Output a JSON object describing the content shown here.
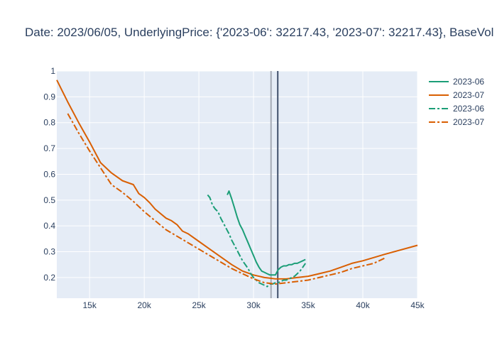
{
  "chart_data": {
    "type": "line",
    "title": "Date:  2023/06/05, UnderlyingPrice: {'2023-06': 32217.43, '2023-07': 32217.43}, BaseVol",
    "xlabel": "",
    "ylabel": "",
    "xlim": [
      12000,
      45000
    ],
    "ylim": [
      0.12,
      1.0
    ],
    "x_ticks": [
      15000,
      20000,
      25000,
      30000,
      35000,
      40000,
      45000
    ],
    "x_tick_labels": [
      "15k",
      "20k",
      "25k",
      "30k",
      "35k",
      "40k",
      "45k"
    ],
    "y_ticks": [
      0.2,
      0.3,
      0.4,
      0.5,
      0.6,
      0.7,
      0.8,
      0.9,
      1.0
    ],
    "y_tick_labels": [
      "0.2",
      "0.3",
      "0.4",
      "0.5",
      "0.6",
      "0.7",
      "0.8",
      "0.9",
      "1"
    ],
    "grid": true,
    "legend_position": "right",
    "background_color": "#e5ecf6",
    "vertical_lines": [
      {
        "x": 31600,
        "color": "#a5aab5"
      },
      {
        "x": 32217.43,
        "color": "#3f4f6b"
      }
    ],
    "series": [
      {
        "name": "2023-06",
        "color": "#1b9e77",
        "dash": "solid",
        "x": [
          27600,
          27750,
          28000,
          28250,
          28500,
          28750,
          29000,
          29250,
          29500,
          29750,
          30000,
          30250,
          30500,
          30750,
          31000,
          31250,
          31500,
          31750,
          32000,
          32250,
          32500,
          32750,
          33000,
          33250,
          33500,
          33750,
          34000,
          34250,
          34500,
          34750
        ],
        "y": [
          0.52,
          0.535,
          0.505,
          0.47,
          0.435,
          0.405,
          0.385,
          0.36,
          0.335,
          0.31,
          0.285,
          0.26,
          0.24,
          0.225,
          0.22,
          0.215,
          0.21,
          0.21,
          0.21,
          0.23,
          0.24,
          0.245,
          0.245,
          0.25,
          0.25,
          0.255,
          0.255,
          0.26,
          0.265,
          0.27
        ]
      },
      {
        "name": "2023-07",
        "color": "#d95f02",
        "dash": "solid",
        "x": [
          12000,
          13000,
          14000,
          15000,
          16000,
          17000,
          18000,
          19000,
          19500,
          20000,
          20500,
          21000,
          22000,
          22500,
          23000,
          23500,
          24000,
          25000,
          26000,
          27000,
          28000,
          29000,
          30000,
          31000,
          32000,
          33000,
          34000,
          35000,
          36000,
          37000,
          38000,
          39000,
          40000,
          42000,
          45000
        ],
        "y": [
          0.965,
          0.88,
          0.8,
          0.725,
          0.645,
          0.605,
          0.575,
          0.56,
          0.525,
          0.51,
          0.49,
          0.465,
          0.43,
          0.42,
          0.405,
          0.38,
          0.37,
          0.34,
          0.31,
          0.28,
          0.25,
          0.225,
          0.21,
          0.2,
          0.195,
          0.195,
          0.2,
          0.205,
          0.215,
          0.225,
          0.24,
          0.255,
          0.265,
          0.29,
          0.325
        ]
      },
      {
        "name": "2023-06",
        "color": "#1b9e77",
        "dash": "dashdot",
        "x": [
          25800,
          26000,
          26250,
          26500,
          26750,
          27000,
          27250,
          27500,
          27750,
          28000,
          28250,
          28500,
          28750,
          29000,
          29250,
          29500,
          29750,
          30000,
          30250,
          30500,
          30750,
          31000,
          31250,
          31500,
          31750,
          32000,
          32250,
          32500,
          32750,
          33000,
          33250,
          33500,
          33750,
          34000,
          34250,
          34500,
          34750
        ],
        "y": [
          0.52,
          0.51,
          0.48,
          0.465,
          0.455,
          0.43,
          0.41,
          0.39,
          0.37,
          0.345,
          0.325,
          0.305,
          0.285,
          0.265,
          0.25,
          0.235,
          0.215,
          0.2,
          0.19,
          0.18,
          0.175,
          0.17,
          0.165,
          0.175,
          0.175,
          0.18,
          0.18,
          0.185,
          0.19,
          0.19,
          0.195,
          0.2,
          0.205,
          0.215,
          0.225,
          0.24,
          0.255
        ]
      },
      {
        "name": "2023-07",
        "color": "#d95f02",
        "dash": "dashdot",
        "x": [
          13000,
          14000,
          15000,
          16000,
          17000,
          18000,
          19000,
          20000,
          21000,
          22000,
          23000,
          24000,
          25000,
          26000,
          27000,
          28000,
          29000,
          30000,
          31000,
          32000,
          33000,
          34000,
          35000,
          36000,
          37000,
          38000,
          39000,
          40000,
          41000,
          42000
        ],
        "y": [
          0.835,
          0.76,
          0.69,
          0.625,
          0.56,
          0.53,
          0.495,
          0.455,
          0.42,
          0.385,
          0.36,
          0.335,
          0.31,
          0.285,
          0.26,
          0.235,
          0.215,
          0.195,
          0.18,
          0.175,
          0.18,
          0.185,
          0.19,
          0.2,
          0.21,
          0.22,
          0.235,
          0.245,
          0.255,
          0.275
        ]
      }
    ]
  }
}
